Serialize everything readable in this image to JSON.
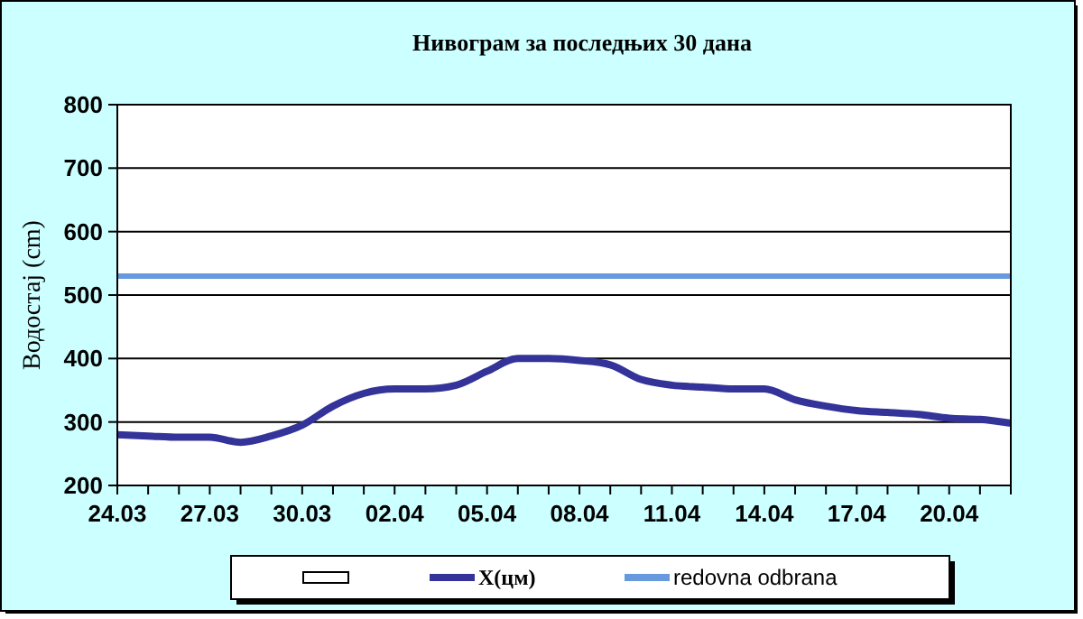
{
  "chart_data": {
    "type": "line",
    "title": "Нивограм за последњих 30 дана",
    "ylabel": "Водостај (cm)",
    "categories": [
      "24.03",
      null,
      null,
      "27.03",
      null,
      null,
      "30.03",
      null,
      null,
      "02.04",
      null,
      null,
      "05.04",
      null,
      null,
      "08.04",
      null,
      null,
      "11.04",
      null,
      null,
      "14.04",
      null,
      null,
      "17.04",
      null,
      null,
      "20.04",
      null,
      null
    ],
    "series": [
      {
        "name": "X(цм)",
        "color": "#333399",
        "values": [
          280,
          278,
          276,
          276,
          268,
          278,
          295,
          325,
          345,
          352,
          352,
          358,
          380,
          400,
          400,
          397,
          390,
          367,
          358,
          355,
          352,
          352,
          335,
          325,
          318,
          315,
          312,
          306,
          304,
          298
        ]
      }
    ],
    "ylim": [
      200,
      800
    ],
    "yticks": [
      200,
      300,
      400,
      500,
      600,
      700,
      800
    ],
    "grid": "y",
    "legend": "bottom",
    "marker": "none",
    "line_style": "solid",
    "ref_lines": [
      {
        "axis": "y",
        "value": 530,
        "label": "redovna odbrana",
        "color": "#6699dd"
      }
    ]
  }
}
